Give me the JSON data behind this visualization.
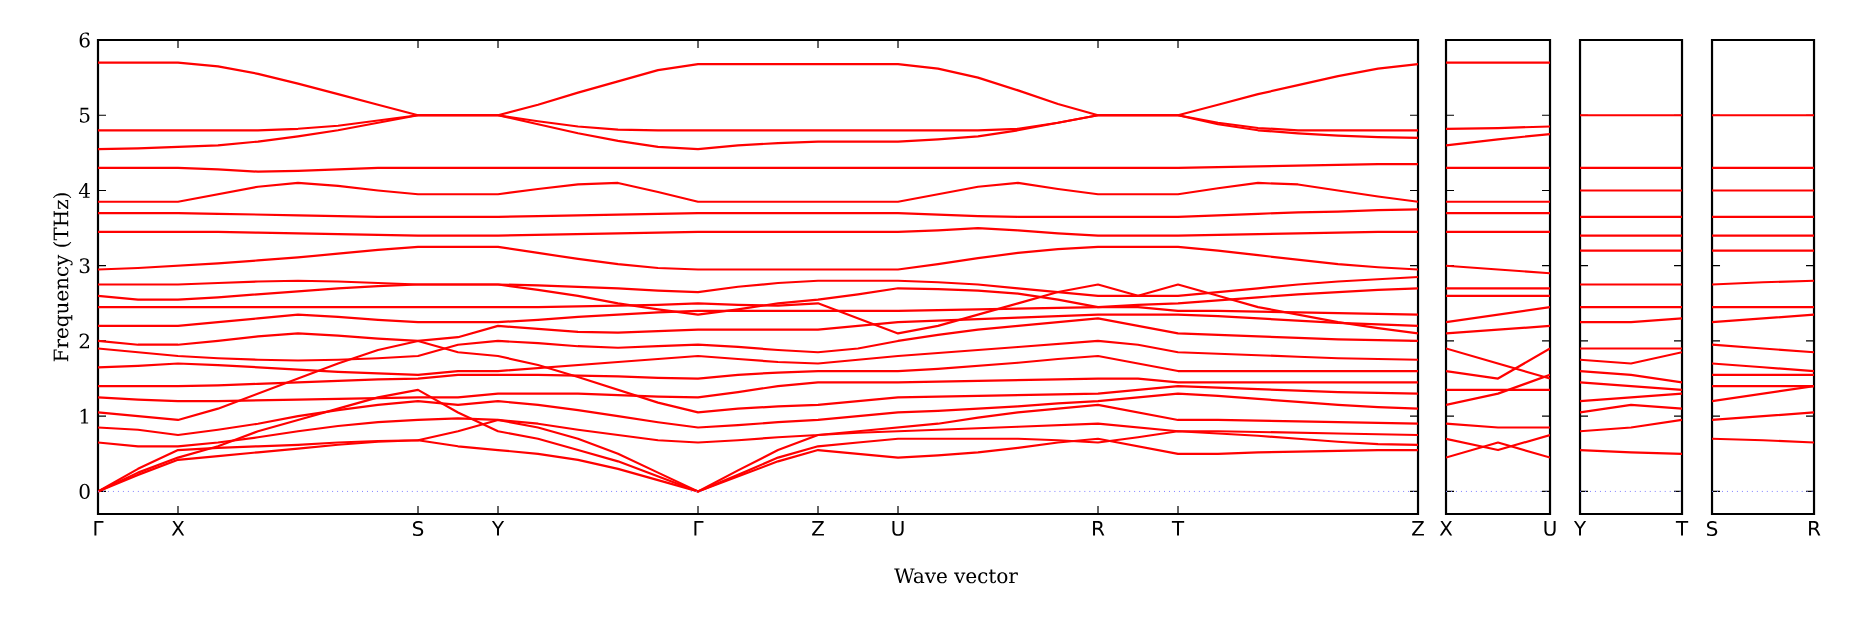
{
  "chart_data": [
    {
      "type": "line",
      "xlabel": "Wave vector",
      "ylabel": "Frequency (THz)",
      "ylim": [
        -0.3,
        6
      ],
      "yticks": [
        0,
        1,
        2,
        3,
        4,
        5,
        6
      ],
      "marker": "none",
      "line_style": "solid",
      "categories": [
        "Γ",
        null,
        "X",
        null,
        null,
        null,
        null,
        null,
        "S",
        null,
        "Y",
        null,
        null,
        null,
        null,
        "Γ",
        null,
        null,
        "Z",
        null,
        "U",
        null,
        null,
        null,
        null,
        "R",
        null,
        "T",
        null,
        null,
        null,
        null,
        null,
        "Z"
      ],
      "ref_lines": [
        {
          "axis": "y",
          "value": 0,
          "color": "#7f7fff",
          "line_style": "dotted"
        }
      ],
      "series": [
        {
          "color": "#ff0000",
          "values": [
            0,
            0.22,
            0.42,
            0.47,
            0.52,
            0.57,
            0.62,
            0.66,
            0.68,
            0.6,
            0.55,
            0.5,
            0.42,
            0.3,
            0.15,
            0,
            0.2,
            0.4,
            0.55,
            0.5,
            0.45,
            0.48,
            0.52,
            0.58,
            0.65,
            0.7,
            0.6,
            0.5,
            0.5,
            0.52,
            0.53,
            0.54,
            0.55,
            0.55
          ]
        },
        {
          "color": "#ff0000",
          "values": [
            0,
            0.25,
            0.45,
            0.6,
            0.8,
            0.95,
            1.1,
            1.25,
            1.35,
            1.05,
            0.8,
            0.7,
            0.55,
            0.4,
            0.2,
            0,
            0.22,
            0.45,
            0.6,
            0.65,
            0.7,
            0.7,
            0.7,
            0.7,
            0.68,
            0.65,
            0.72,
            0.8,
            0.77,
            0.74,
            0.7,
            0.66,
            0.63,
            0.62
          ]
        },
        {
          "color": "#ff0000",
          "values": [
            0,
            0.3,
            0.55,
            0.58,
            0.6,
            0.62,
            0.65,
            0.67,
            0.68,
            0.8,
            0.95,
            0.85,
            0.7,
            0.5,
            0.25,
            0,
            0.28,
            0.55,
            0.75,
            0.78,
            0.8,
            0.82,
            0.84,
            0.86,
            0.88,
            0.9,
            0.85,
            0.8,
            0.8,
            0.79,
            0.78,
            0.77,
            0.76,
            0.75
          ]
        },
        {
          "color": "#ff0000",
          "values": [
            0.65,
            0.6,
            0.6,
            0.65,
            0.72,
            0.8,
            0.87,
            0.92,
            0.95,
            0.97,
            0.95,
            0.9,
            0.82,
            0.75,
            0.68,
            0.65,
            0.68,
            0.72,
            0.75,
            0.8,
            0.85,
            0.9,
            0.98,
            1.05,
            1.1,
            1.15,
            1.05,
            0.95,
            0.95,
            0.94,
            0.93,
            0.92,
            0.91,
            0.9
          ]
        },
        {
          "color": "#ff0000",
          "values": [
            0.85,
            0.82,
            0.75,
            0.82,
            0.9,
            1.0,
            1.08,
            1.15,
            1.2,
            1.15,
            1.2,
            1.15,
            1.08,
            1.0,
            0.92,
            0.85,
            0.88,
            0.92,
            0.95,
            1.0,
            1.05,
            1.07,
            1.1,
            1.13,
            1.17,
            1.2,
            1.25,
            1.3,
            1.27,
            1.23,
            1.19,
            1.15,
            1.12,
            1.1
          ]
        },
        {
          "color": "#ff0000",
          "values": [
            1.05,
            1.0,
            0.95,
            1.1,
            1.3,
            1.5,
            1.7,
            1.88,
            2.0,
            1.85,
            1.8,
            1.68,
            1.52,
            1.35,
            1.18,
            1.05,
            1.1,
            1.13,
            1.15,
            1.2,
            1.25,
            1.26,
            1.27,
            1.28,
            1.29,
            1.3,
            1.35,
            1.4,
            1.38,
            1.36,
            1.34,
            1.32,
            1.31,
            1.3
          ]
        },
        {
          "color": "#ff0000",
          "values": [
            1.25,
            1.22,
            1.2,
            1.2,
            1.21,
            1.22,
            1.23,
            1.24,
            1.25,
            1.25,
            1.3,
            1.3,
            1.3,
            1.28,
            1.26,
            1.25,
            1.32,
            1.4,
            1.45,
            1.45,
            1.45,
            1.46,
            1.47,
            1.48,
            1.49,
            1.5,
            1.5,
            1.45,
            1.45,
            1.45,
            1.45,
            1.45,
            1.45,
            1.45
          ]
        },
        {
          "color": "#ff0000",
          "values": [
            1.4,
            1.4,
            1.4,
            1.41,
            1.43,
            1.45,
            1.47,
            1.49,
            1.5,
            1.55,
            1.55,
            1.55,
            1.54,
            1.53,
            1.51,
            1.5,
            1.55,
            1.58,
            1.6,
            1.6,
            1.6,
            1.63,
            1.67,
            1.71,
            1.76,
            1.8,
            1.7,
            1.6,
            1.6,
            1.6,
            1.6,
            1.6,
            1.6,
            1.6
          ]
        },
        {
          "color": "#ff0000",
          "values": [
            1.65,
            1.67,
            1.7,
            1.68,
            1.65,
            1.62,
            1.59,
            1.57,
            1.55,
            1.6,
            1.6,
            1.64,
            1.68,
            1.72,
            1.76,
            1.8,
            1.76,
            1.72,
            1.7,
            1.75,
            1.8,
            1.84,
            1.88,
            1.92,
            1.96,
            2.0,
            1.95,
            1.85,
            1.83,
            1.81,
            1.79,
            1.77,
            1.76,
            1.75
          ]
        },
        {
          "color": "#ff0000",
          "values": [
            1.9,
            1.85,
            1.8,
            1.77,
            1.75,
            1.74,
            1.75,
            1.77,
            1.8,
            1.95,
            2.0,
            1.97,
            1.93,
            1.91,
            1.93,
            1.95,
            1.92,
            1.88,
            1.85,
            1.9,
            2.0,
            2.08,
            2.15,
            2.2,
            2.25,
            2.3,
            2.2,
            2.1,
            2.08,
            2.06,
            2.04,
            2.02,
            2.01,
            2.0
          ]
        },
        {
          "color": "#ff0000",
          "values": [
            2.0,
            1.95,
            1.95,
            2.0,
            2.06,
            2.1,
            2.07,
            2.03,
            2.0,
            2.05,
            2.2,
            2.16,
            2.12,
            2.11,
            2.13,
            2.15,
            2.15,
            2.15,
            2.15,
            2.2,
            2.25,
            2.27,
            2.29,
            2.31,
            2.33,
            2.35,
            2.35,
            2.35,
            2.33,
            2.3,
            2.27,
            2.24,
            2.22,
            2.2
          ]
        },
        {
          "color": "#ff0000",
          "values": [
            2.2,
            2.2,
            2.2,
            2.25,
            2.3,
            2.35,
            2.32,
            2.28,
            2.25,
            2.25,
            2.25,
            2.28,
            2.32,
            2.35,
            2.38,
            2.4,
            2.4,
            2.4,
            2.4,
            2.4,
            2.4,
            2.41,
            2.42,
            2.43,
            2.44,
            2.45,
            2.45,
            2.4,
            2.4,
            2.39,
            2.38,
            2.37,
            2.36,
            2.35
          ]
        },
        {
          "color": "#ff0000",
          "values": [
            2.45,
            2.45,
            2.45,
            2.45,
            2.45,
            2.45,
            2.45,
            2.45,
            2.45,
            2.45,
            2.45,
            2.45,
            2.46,
            2.47,
            2.48,
            2.5,
            2.48,
            2.47,
            2.5,
            2.3,
            2.1,
            2.2,
            2.35,
            2.5,
            2.65,
            2.75,
            2.6,
            2.75,
            2.6,
            2.45,
            2.35,
            2.25,
            2.17,
            2.1
          ]
        },
        {
          "color": "#ff0000",
          "values": [
            2.6,
            2.55,
            2.55,
            2.58,
            2.62,
            2.66,
            2.7,
            2.73,
            2.75,
            2.75,
            2.75,
            2.68,
            2.6,
            2.5,
            2.42,
            2.35,
            2.42,
            2.5,
            2.55,
            2.62,
            2.7,
            2.69,
            2.67,
            2.63,
            2.55,
            2.45,
            2.48,
            2.5,
            2.54,
            2.58,
            2.62,
            2.65,
            2.68,
            2.7
          ]
        },
        {
          "color": "#ff0000",
          "values": [
            2.75,
            2.75,
            2.75,
            2.77,
            2.79,
            2.8,
            2.79,
            2.77,
            2.75,
            2.75,
            2.75,
            2.74,
            2.72,
            2.7,
            2.67,
            2.65,
            2.72,
            2.77,
            2.8,
            2.8,
            2.8,
            2.78,
            2.75,
            2.7,
            2.65,
            2.6,
            2.6,
            2.6,
            2.65,
            2.7,
            2.75,
            2.79,
            2.82,
            2.85
          ]
        },
        {
          "color": "#ff0000",
          "values": [
            2.95,
            2.97,
            3.0,
            3.03,
            3.07,
            3.11,
            3.16,
            3.21,
            3.25,
            3.25,
            3.25,
            3.17,
            3.09,
            3.02,
            2.97,
            2.95,
            2.95,
            2.95,
            2.95,
            2.95,
            2.95,
            3.02,
            3.1,
            3.17,
            3.22,
            3.25,
            3.25,
            3.25,
            3.2,
            3.14,
            3.08,
            3.02,
            2.98,
            2.95
          ]
        },
        {
          "color": "#ff0000",
          "values": [
            3.45,
            3.45,
            3.45,
            3.45,
            3.44,
            3.43,
            3.42,
            3.41,
            3.4,
            3.4,
            3.4,
            3.41,
            3.42,
            3.43,
            3.44,
            3.45,
            3.45,
            3.45,
            3.45,
            3.45,
            3.45,
            3.47,
            3.5,
            3.47,
            3.43,
            3.4,
            3.4,
            3.4,
            3.41,
            3.42,
            3.43,
            3.44,
            3.45,
            3.45
          ]
        },
        {
          "color": "#ff0000",
          "values": [
            3.7,
            3.7,
            3.7,
            3.69,
            3.68,
            3.67,
            3.66,
            3.65,
            3.65,
            3.65,
            3.65,
            3.66,
            3.67,
            3.68,
            3.69,
            3.7,
            3.7,
            3.7,
            3.7,
            3.7,
            3.7,
            3.68,
            3.66,
            3.65,
            3.65,
            3.65,
            3.65,
            3.65,
            3.67,
            3.69,
            3.71,
            3.72,
            3.74,
            3.75
          ]
        },
        {
          "color": "#ff0000",
          "values": [
            3.85,
            3.85,
            3.85,
            3.95,
            4.05,
            4.1,
            4.06,
            4.0,
            3.95,
            3.95,
            3.95,
            4.02,
            4.08,
            4.1,
            3.98,
            3.85,
            3.85,
            3.85,
            3.85,
            3.85,
            3.85,
            3.95,
            4.05,
            4.1,
            4.02,
            3.95,
            3.95,
            3.95,
            4.03,
            4.1,
            4.08,
            4.0,
            3.92,
            3.85
          ]
        },
        {
          "color": "#ff0000",
          "values": [
            4.3,
            4.3,
            4.3,
            4.28,
            4.25,
            4.26,
            4.28,
            4.3,
            4.3,
            4.3,
            4.3,
            4.3,
            4.3,
            4.3,
            4.3,
            4.3,
            4.3,
            4.3,
            4.3,
            4.3,
            4.3,
            4.3,
            4.3,
            4.3,
            4.3,
            4.3,
            4.3,
            4.3,
            4.31,
            4.32,
            4.33,
            4.34,
            4.35,
            4.35
          ]
        },
        {
          "color": "#ff0000",
          "values": [
            4.55,
            4.56,
            4.58,
            4.6,
            4.65,
            4.72,
            4.8,
            4.9,
            5.0,
            5.0,
            5.0,
            4.88,
            4.76,
            4.66,
            4.58,
            4.55,
            4.6,
            4.63,
            4.65,
            4.65,
            4.65,
            4.68,
            4.72,
            4.8,
            4.9,
            5.0,
            5.0,
            5.0,
            4.88,
            4.8,
            4.76,
            4.73,
            4.71,
            4.7
          ]
        },
        {
          "color": "#ff0000",
          "values": [
            4.8,
            4.8,
            4.8,
            4.8,
            4.8,
            4.82,
            4.86,
            4.93,
            5.0,
            5.0,
            5.0,
            4.92,
            4.85,
            4.81,
            4.8,
            4.8,
            4.8,
            4.8,
            4.8,
            4.8,
            4.8,
            4.8,
            4.8,
            4.82,
            4.9,
            5.0,
            5.0,
            5.0,
            4.9,
            4.83,
            4.8,
            4.8,
            4.8,
            4.8
          ]
        },
        {
          "color": "#ff0000",
          "values": [
            5.7,
            5.7,
            5.7,
            5.65,
            5.55,
            5.42,
            5.28,
            5.14,
            5.0,
            5.0,
            5.0,
            5.14,
            5.3,
            5.45,
            5.6,
            5.68,
            5.68,
            5.68,
            5.68,
            5.68,
            5.68,
            5.62,
            5.5,
            5.33,
            5.15,
            5.0,
            5.0,
            5.0,
            5.14,
            5.28,
            5.4,
            5.52,
            5.62,
            5.68
          ]
        }
      ]
    },
    {
      "type": "line",
      "ylim": [
        -0.3,
        6
      ],
      "yticks": [
        0,
        1,
        2,
        3,
        4,
        5,
        6
      ],
      "tick_labels": "x",
      "marker": "none",
      "line_style": "solid",
      "categories": [
        "X",
        null,
        "U"
      ],
      "ref_lines": [
        {
          "axis": "y",
          "value": 0,
          "color": "#7f7fff",
          "line_style": "dotted"
        }
      ],
      "series": [
        {
          "color": "#ff0000",
          "values": [
            5.7,
            5.7,
            5.7
          ]
        },
        {
          "color": "#ff0000",
          "values": [
            4.82,
            4.83,
            4.85
          ]
        },
        {
          "color": "#ff0000",
          "values": [
            4.6,
            4.68,
            4.75
          ]
        },
        {
          "color": "#ff0000",
          "values": [
            4.3,
            4.3,
            4.3
          ]
        },
        {
          "color": "#ff0000",
          "values": [
            3.85,
            3.85,
            3.85
          ]
        },
        {
          "color": "#ff0000",
          "values": [
            3.7,
            3.7,
            3.7
          ]
        },
        {
          "color": "#ff0000",
          "values": [
            3.45,
            3.45,
            3.45
          ]
        },
        {
          "color": "#ff0000",
          "values": [
            3.0,
            2.95,
            2.9
          ]
        },
        {
          "color": "#ff0000",
          "values": [
            2.7,
            2.7,
            2.7
          ]
        },
        {
          "color": "#ff0000",
          "values": [
            2.6,
            2.6,
            2.6
          ]
        },
        {
          "color": "#ff0000",
          "values": [
            2.25,
            2.35,
            2.45
          ]
        },
        {
          "color": "#ff0000",
          "values": [
            2.1,
            2.15,
            2.2
          ]
        },
        {
          "color": "#ff0000",
          "values": [
            1.9,
            1.7,
            1.5
          ]
        },
        {
          "color": "#ff0000",
          "values": [
            1.6,
            1.5,
            1.9
          ]
        },
        {
          "color": "#ff0000",
          "values": [
            1.35,
            1.35,
            1.35
          ]
        },
        {
          "color": "#ff0000",
          "values": [
            1.15,
            1.3,
            1.55
          ]
        },
        {
          "color": "#ff0000",
          "values": [
            0.9,
            0.85,
            0.85
          ]
        },
        {
          "color": "#ff0000",
          "values": [
            0.7,
            0.55,
            0.75
          ]
        },
        {
          "color": "#ff0000",
          "values": [
            0.45,
            0.65,
            0.45
          ]
        }
      ]
    },
    {
      "type": "line",
      "ylim": [
        -0.3,
        6
      ],
      "yticks": [
        0,
        1,
        2,
        3,
        4,
        5,
        6
      ],
      "tick_labels": "x",
      "marker": "none",
      "line_style": "solid",
      "categories": [
        "Y",
        null,
        "T"
      ],
      "ref_lines": [
        {
          "axis": "y",
          "value": 0,
          "color": "#7f7fff",
          "line_style": "dotted"
        }
      ],
      "series": [
        {
          "color": "#ff0000",
          "values": [
            5.0,
            5.0,
            5.0
          ]
        },
        {
          "color": "#ff0000",
          "values": [
            4.3,
            4.3,
            4.3
          ]
        },
        {
          "color": "#ff0000",
          "values": [
            4.0,
            4.0,
            4.0
          ]
        },
        {
          "color": "#ff0000",
          "values": [
            3.65,
            3.65,
            3.65
          ]
        },
        {
          "color": "#ff0000",
          "values": [
            3.4,
            3.4,
            3.4
          ]
        },
        {
          "color": "#ff0000",
          "values": [
            3.2,
            3.2,
            3.2
          ]
        },
        {
          "color": "#ff0000",
          "values": [
            2.75,
            2.75,
            2.75
          ]
        },
        {
          "color": "#ff0000",
          "values": [
            2.45,
            2.45,
            2.45
          ]
        },
        {
          "color": "#ff0000",
          "values": [
            2.25,
            2.25,
            2.3
          ]
        },
        {
          "color": "#ff0000",
          "values": [
            1.9,
            1.9,
            1.9
          ]
        },
        {
          "color": "#ff0000",
          "values": [
            1.75,
            1.7,
            1.85
          ]
        },
        {
          "color": "#ff0000",
          "values": [
            1.6,
            1.55,
            1.45
          ]
        },
        {
          "color": "#ff0000",
          "values": [
            1.45,
            1.4,
            1.35
          ]
        },
        {
          "color": "#ff0000",
          "values": [
            1.2,
            1.25,
            1.3
          ]
        },
        {
          "color": "#ff0000",
          "values": [
            1.05,
            1.15,
            1.1
          ]
        },
        {
          "color": "#ff0000",
          "values": [
            0.8,
            0.85,
            0.95
          ]
        },
        {
          "color": "#ff0000",
          "values": [
            0.55,
            0.52,
            0.5
          ]
        }
      ]
    },
    {
      "type": "line",
      "ylim": [
        -0.3,
        6
      ],
      "yticks": [
        0,
        1,
        2,
        3,
        4,
        5,
        6
      ],
      "tick_labels": "x",
      "marker": "none",
      "line_style": "solid",
      "categories": [
        "S",
        null,
        "R"
      ],
      "ref_lines": [
        {
          "axis": "y",
          "value": 0,
          "color": "#7f7fff",
          "line_style": "dotted"
        }
      ],
      "series": [
        {
          "color": "#ff0000",
          "values": [
            5.0,
            5.0,
            5.0
          ]
        },
        {
          "color": "#ff0000",
          "values": [
            4.3,
            4.3,
            4.3
          ]
        },
        {
          "color": "#ff0000",
          "values": [
            4.0,
            4.0,
            4.0
          ]
        },
        {
          "color": "#ff0000",
          "values": [
            3.65,
            3.65,
            3.65
          ]
        },
        {
          "color": "#ff0000",
          "values": [
            3.4,
            3.4,
            3.4
          ]
        },
        {
          "color": "#ff0000",
          "values": [
            3.2,
            3.2,
            3.2
          ]
        },
        {
          "color": "#ff0000",
          "values": [
            2.75,
            2.78,
            2.8
          ]
        },
        {
          "color": "#ff0000",
          "values": [
            2.45,
            2.45,
            2.45
          ]
        },
        {
          "color": "#ff0000",
          "values": [
            2.25,
            2.3,
            2.35
          ]
        },
        {
          "color": "#ff0000",
          "values": [
            1.95,
            1.9,
            1.85
          ]
        },
        {
          "color": "#ff0000",
          "values": [
            1.7,
            1.65,
            1.6
          ]
        },
        {
          "color": "#ff0000",
          "values": [
            1.55,
            1.55,
            1.55
          ]
        },
        {
          "color": "#ff0000",
          "values": [
            1.4,
            1.4,
            1.4
          ]
        },
        {
          "color": "#ff0000",
          "values": [
            1.2,
            1.3,
            1.4
          ]
        },
        {
          "color": "#ff0000",
          "values": [
            0.95,
            1.0,
            1.05
          ]
        },
        {
          "color": "#ff0000",
          "values": [
            0.7,
            0.68,
            0.65
          ]
        }
      ]
    }
  ]
}
